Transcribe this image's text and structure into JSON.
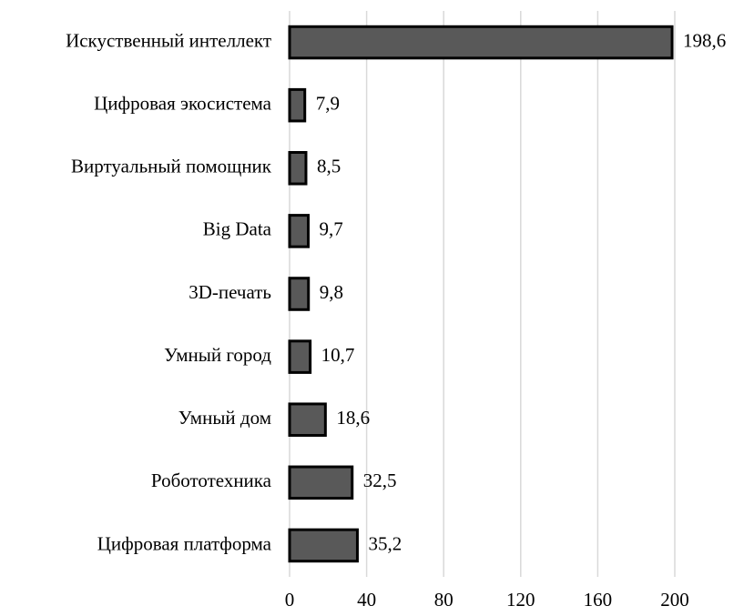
{
  "chart_data": {
    "type": "bar",
    "orientation": "horizontal",
    "categories": [
      "Искуственный интеллект",
      "Цифровая экосистема",
      "Виртуальный помощник",
      "Big Data",
      "3D-печать",
      "Умный город",
      "Умный дом",
      "Робототехника",
      "Цифровая платформа"
    ],
    "values": [
      198.6,
      7.9,
      8.5,
      9.7,
      9.8,
      10.7,
      18.6,
      32.5,
      35.2
    ],
    "value_labels": [
      "198,6",
      "7,9",
      "8,5",
      "9,7",
      "9,8",
      "10,7",
      "18,6",
      "32,5",
      "35,2"
    ],
    "color": "#595959",
    "xlim": [
      0,
      200
    ],
    "xticks": [
      0,
      40,
      80,
      120,
      160,
      200
    ],
    "grid": true
  }
}
